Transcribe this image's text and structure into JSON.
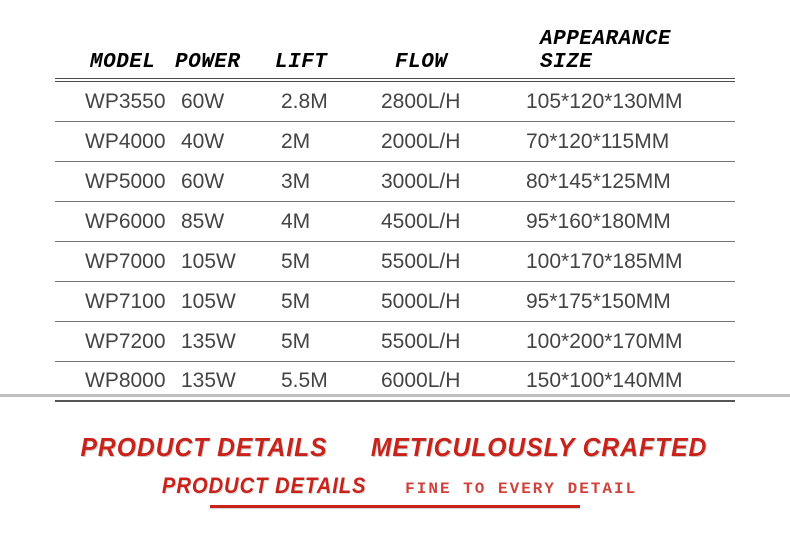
{
  "table": {
    "headers": {
      "model": "MODEL",
      "power": "POWER",
      "lift": "LIFT",
      "flow": "FLOW",
      "size": "APPEARANCE SIZE"
    },
    "rows": [
      {
        "model": "WP3550",
        "power": "60W",
        "lift": "2.8M",
        "flow": "2800L/H",
        "size": "105*120*130MM"
      },
      {
        "model": "WP4000",
        "power": "40W",
        "lift": "2M",
        "flow": "2000L/H",
        "size": "70*120*115MM"
      },
      {
        "model": "WP5000",
        "power": "60W",
        "lift": "3M",
        "flow": "3000L/H",
        "size": "80*145*125MM"
      },
      {
        "model": "WP6000",
        "power": "85W",
        "lift": "4M",
        "flow": "4500L/H",
        "size": "95*160*180MM"
      },
      {
        "model": "WP7000",
        "power": "105W",
        "lift": "5M",
        "flow": "5500L/H",
        "size": "100*170*185MM"
      },
      {
        "model": "WP7100",
        "power": "105W",
        "lift": "5M",
        "flow": "5000L/H",
        "size": "95*175*150MM"
      },
      {
        "model": "WP7200",
        "power": "135W",
        "lift": "5M",
        "flow": "5500L/H",
        "size": "100*200*170MM"
      },
      {
        "model": "WP8000",
        "power": "135W",
        "lift": "5.5M",
        "flow": "6000L/H",
        "size": "150*100*140MM"
      }
    ]
  },
  "footer": {
    "line1a": "PRODUCT DETAILS",
    "line1b": "METICULOUSLY CRAFTED",
    "line2a": "PRODUCT DETAILS",
    "line2b": "FINE TO EVERY DETAIL"
  },
  "style": {
    "accent_red": "#c8221a",
    "text_grey": "#444444",
    "rule_grey": "#777777",
    "divider_grey": "#bfbfbf",
    "header_fontsize": 21,
    "cell_fontsize": 21,
    "footer_big_fontsize": 26,
    "footer_small_fontsize": 22,
    "footer_tag_fontsize": 16
  }
}
